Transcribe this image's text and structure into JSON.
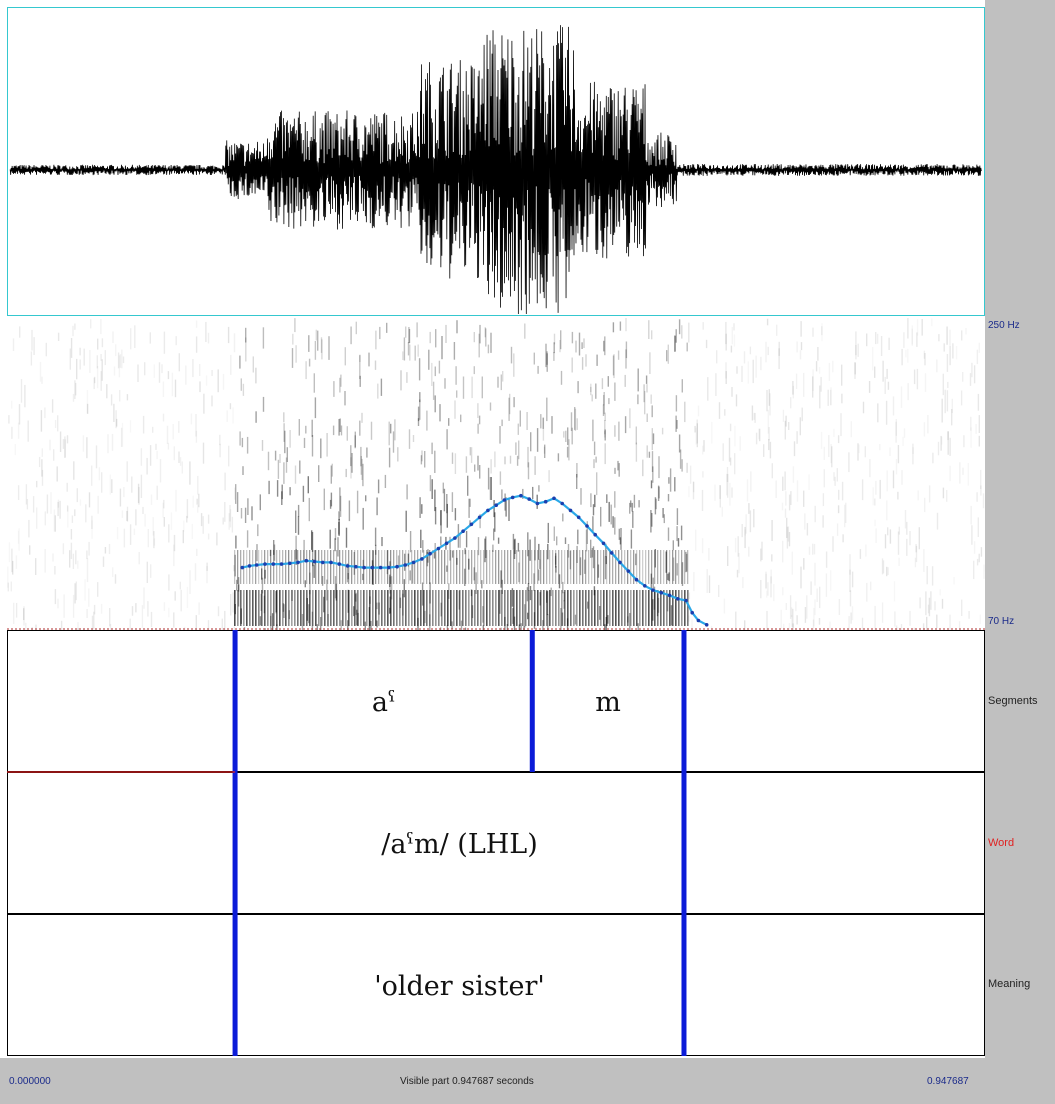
{
  "axis": {
    "freq_top": "250 Hz",
    "freq_bottom": "70 Hz",
    "time_start": "0.000000",
    "time_end": "0.947687",
    "visible_part": "Visible part 0.947687 seconds"
  },
  "tiers": [
    {
      "name": "Segments",
      "name_color": "#222222",
      "intervals": [
        {
          "text": "",
          "start": 0.0,
          "end": 0.221
        },
        {
          "text": "aˤ",
          "start": 0.221,
          "end": 0.509
        },
        {
          "text": "m",
          "start": 0.509,
          "end": 0.656
        },
        {
          "text": "",
          "start": 0.656,
          "end": 0.947687
        }
      ]
    },
    {
      "name": "Word",
      "name_color": "#e02020",
      "intervals": [
        {
          "text": "",
          "start": 0.0,
          "end": 0.221
        },
        {
          "text": "/aˤm/ (LHL)",
          "start": 0.221,
          "end": 0.656
        },
        {
          "text": "",
          "start": 0.656,
          "end": 0.947687
        }
      ]
    },
    {
      "name": "Meaning",
      "name_color": "#222222",
      "intervals": [
        {
          "text": "",
          "start": 0.0,
          "end": 0.221
        },
        {
          "text": "'older sister'",
          "start": 0.221,
          "end": 0.656
        },
        {
          "text": "",
          "start": 0.656,
          "end": 0.947687
        }
      ]
    }
  ],
  "pitch": {
    "color": "#2aa8e8",
    "points": [
      [
        0.228,
        106
      ],
      [
        0.235,
        107
      ],
      [
        0.242,
        107.5
      ],
      [
        0.25,
        108
      ],
      [
        0.258,
        108
      ],
      [
        0.266,
        108
      ],
      [
        0.274,
        108.5
      ],
      [
        0.282,
        109
      ],
      [
        0.29,
        110
      ],
      [
        0.298,
        109.5
      ],
      [
        0.306,
        109
      ],
      [
        0.314,
        109
      ],
      [
        0.322,
        108
      ],
      [
        0.33,
        107
      ],
      [
        0.338,
        106.5
      ],
      [
        0.346,
        106
      ],
      [
        0.354,
        106
      ],
      [
        0.362,
        106
      ],
      [
        0.37,
        106
      ],
      [
        0.378,
        106.5
      ],
      [
        0.386,
        107.5
      ],
      [
        0.394,
        109
      ],
      [
        0.402,
        111
      ],
      [
        0.41,
        114
      ],
      [
        0.418,
        117
      ],
      [
        0.426,
        120
      ],
      [
        0.434,
        123
      ],
      [
        0.442,
        127
      ],
      [
        0.45,
        131
      ],
      [
        0.458,
        135
      ],
      [
        0.466,
        139
      ],
      [
        0.474,
        142
      ],
      [
        0.482,
        145
      ],
      [
        0.49,
        146.5
      ],
      [
        0.498,
        147.5
      ],
      [
        0.506,
        145.5
      ],
      [
        0.514,
        143
      ],
      [
        0.522,
        144
      ],
      [
        0.53,
        146
      ],
      [
        0.538,
        143
      ],
      [
        0.546,
        139
      ],
      [
        0.554,
        135
      ],
      [
        0.562,
        130
      ],
      [
        0.57,
        125
      ],
      [
        0.578,
        120
      ],
      [
        0.586,
        114.5
      ],
      [
        0.594,
        109
      ],
      [
        0.602,
        104
      ],
      [
        0.61,
        99
      ],
      [
        0.618,
        95.5
      ],
      [
        0.626,
        93
      ],
      [
        0.634,
        91.5
      ],
      [
        0.642,
        90
      ],
      [
        0.65,
        88
      ],
      [
        0.658,
        87
      ],
      [
        0.664,
        80
      ],
      [
        0.67,
        75.5
      ],
      [
        0.678,
        73
      ]
    ]
  },
  "waveform": {
    "segments": [
      {
        "start": 0.0,
        "end": 0.21,
        "amp": 0.035
      },
      {
        "start": 0.21,
        "end": 0.25,
        "amp": 0.2
      },
      {
        "start": 0.25,
        "end": 0.4,
        "amp": 0.4
      },
      {
        "start": 0.4,
        "end": 0.46,
        "amp": 0.75
      },
      {
        "start": 0.46,
        "end": 0.55,
        "amp": 0.98
      },
      {
        "start": 0.55,
        "end": 0.62,
        "amp": 0.6
      },
      {
        "start": 0.62,
        "end": 0.65,
        "amp": 0.25
      },
      {
        "start": 0.65,
        "end": 0.947687,
        "amp": 0.04
      }
    ]
  }
}
